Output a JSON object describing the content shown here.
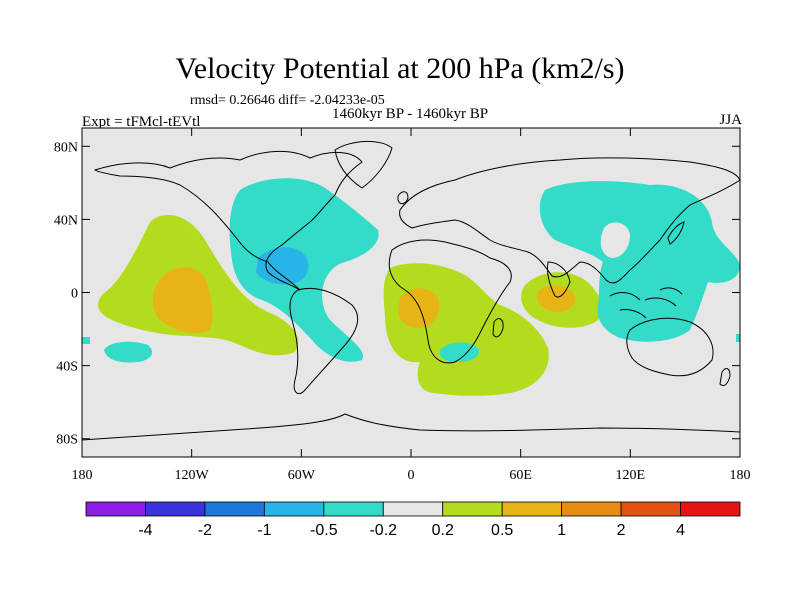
{
  "title": "Velocity Potential at 200 hPa (km2/s)",
  "stats_line": "rmsd= 0.26646 diff= -2.04233e-05",
  "period": "1460kyr BP - 1460kyr BP",
  "experiment": "Expt = tFMcl-tEVtl",
  "season": "JJA",
  "lat_ticks": [
    {
      "value": 80,
      "label": "80N"
    },
    {
      "value": 40,
      "label": "40N"
    },
    {
      "value": 0,
      "label": "0"
    },
    {
      "value": -40,
      "label": "40S"
    },
    {
      "value": -80,
      "label": "80S"
    }
  ],
  "lon_ticks": [
    {
      "value": -180,
      "label": "180"
    },
    {
      "value": -120,
      "label": "120W"
    },
    {
      "value": -60,
      "label": "60W"
    },
    {
      "value": 0,
      "label": "0"
    },
    {
      "value": 60,
      "label": "60E"
    },
    {
      "value": 120,
      "label": "120E"
    },
    {
      "value": 180,
      "label": "180"
    }
  ],
  "colorbar": {
    "colors": [
      "#8a1ee6",
      "#3c32dc",
      "#1e78dc",
      "#28b4e6",
      "#32dcc8",
      "#e6e6e6",
      "#b4dc1e",
      "#e6b414",
      "#e68c14",
      "#e65014",
      "#e61414"
    ],
    "labels": [
      "-4",
      "-2",
      "-1",
      "-0.5",
      "-0.2",
      "0.2",
      "0.5",
      "1",
      "2",
      "4"
    ]
  },
  "map_colors": {
    "background": "#e6e6e6",
    "neg_weak": "#32dcc8",
    "neg_mid": "#28b4e6",
    "pos_weak": "#b4dc1e",
    "pos_mid": "#e6b414"
  }
}
